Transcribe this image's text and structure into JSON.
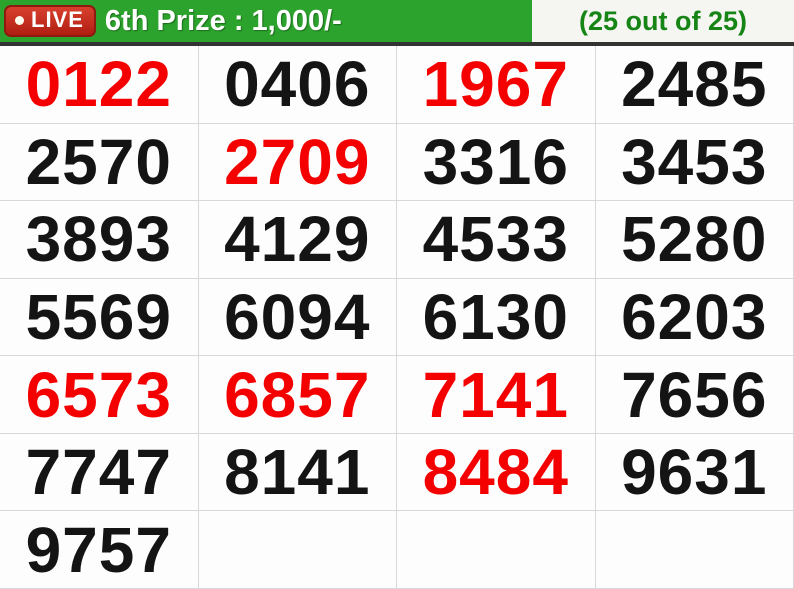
{
  "header": {
    "live_label": "LIVE",
    "title": "6th Prize : 1,000/-",
    "counter": "(25 out of 25)"
  },
  "colors": {
    "header_green": "#2CA32C",
    "live_badge_red": "#B01E12",
    "counter_text_green": "#168516",
    "number_red": "#F40000",
    "number_black": "#141414"
  },
  "numbers": {
    "columns": 4,
    "rows": 7,
    "items": [
      {
        "value": "0122",
        "color": "red"
      },
      {
        "value": "0406",
        "color": "black"
      },
      {
        "value": "1967",
        "color": "red"
      },
      {
        "value": "2485",
        "color": "black"
      },
      {
        "value": "2570",
        "color": "black"
      },
      {
        "value": "2709",
        "color": "red"
      },
      {
        "value": "3316",
        "color": "black"
      },
      {
        "value": "3453",
        "color": "black"
      },
      {
        "value": "3893",
        "color": "black"
      },
      {
        "value": "4129",
        "color": "black"
      },
      {
        "value": "4533",
        "color": "black"
      },
      {
        "value": "5280",
        "color": "black"
      },
      {
        "value": "5569",
        "color": "black"
      },
      {
        "value": "6094",
        "color": "black"
      },
      {
        "value": "6130",
        "color": "black"
      },
      {
        "value": "6203",
        "color": "black"
      },
      {
        "value": "6573",
        "color": "red"
      },
      {
        "value": "6857",
        "color": "red"
      },
      {
        "value": "7141",
        "color": "red"
      },
      {
        "value": "7656",
        "color": "black"
      },
      {
        "value": "7747",
        "color": "black"
      },
      {
        "value": "8141",
        "color": "black"
      },
      {
        "value": "8484",
        "color": "red"
      },
      {
        "value": "9631",
        "color": "black"
      },
      {
        "value": "9757",
        "color": "black"
      }
    ]
  }
}
